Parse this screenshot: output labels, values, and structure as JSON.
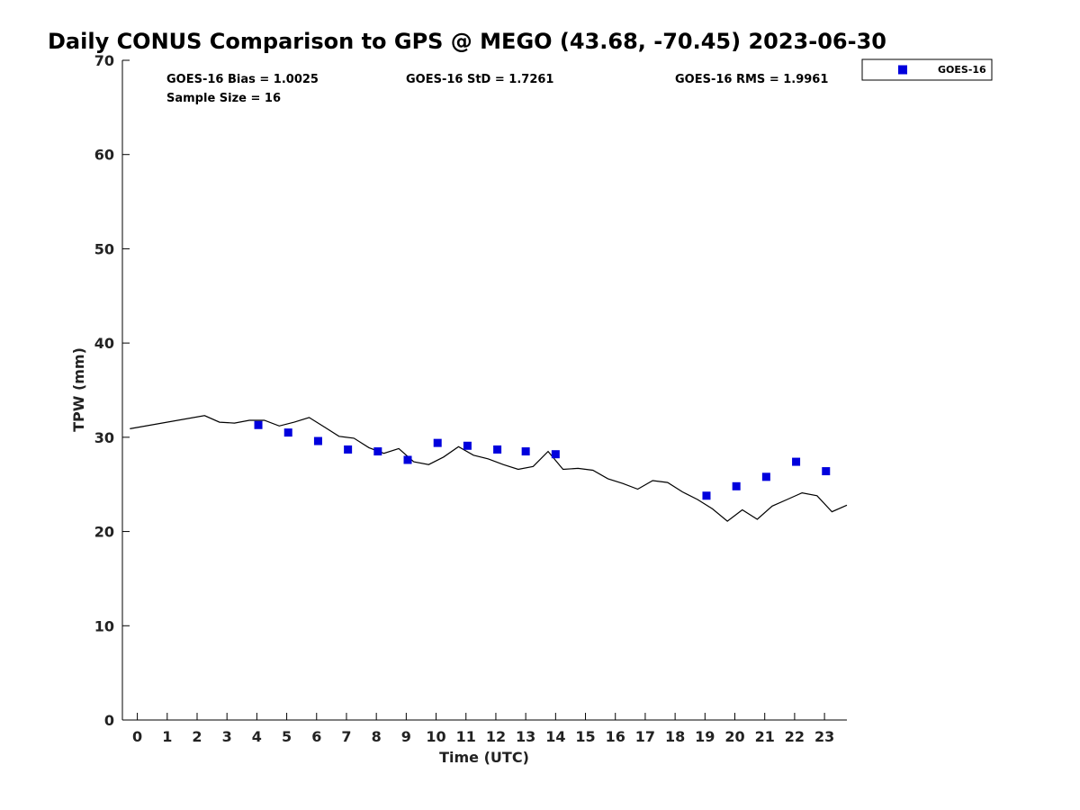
{
  "chart_data": {
    "type": "scatter",
    "title": "Daily CONUS Comparison to GPS @ MEGO (43.68, -70.45) 2023-06-30",
    "xlabel": "Time (UTC)",
    "ylabel": "TPW (mm)",
    "xlim": [
      -0.5,
      23.75
    ],
    "ylim": [
      0,
      70
    ],
    "x_ticks": [
      0,
      1,
      2,
      3,
      4,
      5,
      6,
      7,
      8,
      9,
      10,
      11,
      12,
      13,
      14,
      15,
      16,
      17,
      18,
      19,
      20,
      21,
      22,
      23
    ],
    "y_ticks": [
      0,
      10,
      20,
      30,
      40,
      50,
      60,
      70
    ],
    "grid": false,
    "legend_position": "top-right, outside plot",
    "stats": {
      "bias": "GOES-16 Bias = 1.0025",
      "std": "GOES-16 StD = 1.7261",
      "rms": "GOES-16 RMS = 1.9961",
      "sample": "Sample Size = 16"
    },
    "series": [
      {
        "name": "GOES-16",
        "kind": "markers",
        "color": "#0000dd",
        "points": [
          [
            4.05,
            31.3
          ],
          [
            5.05,
            30.5
          ],
          [
            6.05,
            29.6
          ],
          [
            7.05,
            28.7
          ],
          [
            8.05,
            28.5
          ],
          [
            9.05,
            27.6
          ],
          [
            10.05,
            29.4
          ],
          [
            11.05,
            29.1
          ],
          [
            12.05,
            28.7
          ],
          [
            13.0,
            28.5
          ],
          [
            14.0,
            28.2
          ],
          [
            19.05,
            23.8
          ],
          [
            20.05,
            24.8
          ],
          [
            21.05,
            25.8
          ],
          [
            22.05,
            27.4
          ],
          [
            23.05,
            26.4
          ]
        ]
      },
      {
        "kind": "line",
        "color": "#000000",
        "points": [
          [
            -0.25,
            30.9
          ],
          [
            2.25,
            32.3
          ],
          [
            2.75,
            31.6
          ],
          [
            3.25,
            31.5
          ],
          [
            3.75,
            31.8
          ],
          [
            4.25,
            31.8
          ],
          [
            4.75,
            31.2
          ],
          [
            5.25,
            31.6
          ],
          [
            5.75,
            32.1
          ],
          [
            6.25,
            31.1
          ],
          [
            6.75,
            30.1
          ],
          [
            7.25,
            29.9
          ],
          [
            7.75,
            28.9
          ],
          [
            8.25,
            28.3
          ],
          [
            8.75,
            28.8
          ],
          [
            9.25,
            27.4
          ],
          [
            9.75,
            27.1
          ],
          [
            10.25,
            27.9
          ],
          [
            10.75,
            29.0
          ],
          [
            11.25,
            28.1
          ],
          [
            11.75,
            27.7
          ],
          [
            12.25,
            27.1
          ],
          [
            12.75,
            26.6
          ],
          [
            13.25,
            26.9
          ],
          [
            13.75,
            28.5
          ],
          [
            14.25,
            26.6
          ],
          [
            14.75,
            26.7
          ],
          [
            15.25,
            26.5
          ],
          [
            15.75,
            25.6
          ],
          [
            16.25,
            25.1
          ],
          [
            16.75,
            24.5
          ],
          [
            17.25,
            25.4
          ],
          [
            17.75,
            25.2
          ],
          [
            18.25,
            24.2
          ],
          [
            18.75,
            23.4
          ],
          [
            19.25,
            22.4
          ],
          [
            19.75,
            21.1
          ],
          [
            20.25,
            22.3
          ],
          [
            20.75,
            21.3
          ],
          [
            21.25,
            22.7
          ],
          [
            21.75,
            23.4
          ],
          [
            22.25,
            24.1
          ],
          [
            22.75,
            23.8
          ],
          [
            23.25,
            22.1
          ],
          [
            23.75,
            22.8
          ]
        ]
      }
    ]
  }
}
